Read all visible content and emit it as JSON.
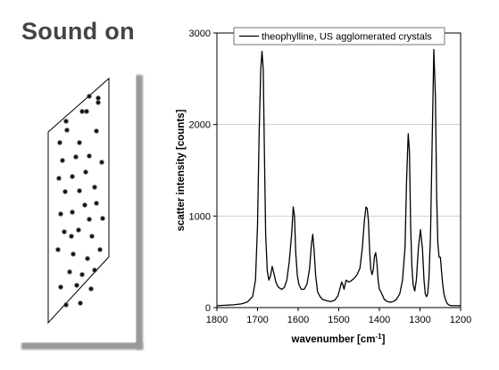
{
  "slide": {
    "heading": "Sound on"
  },
  "chart_data": {
    "type": "line",
    "legend_entry": "theophylline, US agglomerated crystals",
    "legend_position": "top",
    "xlabel": "wavenumber [cm-1]",
    "xlabel_main": "wavenumber [cm",
    "xlabel_sup": "-1",
    "xlabel_close": "]",
    "ylabel": "scatter intensity [counts]",
    "xlim": [
      1800,
      1200
    ],
    "ylim": [
      0,
      3000
    ],
    "x_reversed": true,
    "grid": "horizontal",
    "x_ticks": [
      1800,
      1700,
      1600,
      1500,
      1400,
      1300,
      1200
    ],
    "y_ticks": [
      0,
      1000,
      2000,
      3000
    ],
    "x_tick_labels": [
      "1800",
      "1700",
      "1600",
      "1500",
      "1400",
      "1300",
      "1200"
    ],
    "y_tick_labels": [
      "0",
      "1000",
      "2000",
      "3000"
    ],
    "line_color": "#000000",
    "series": [
      {
        "x": [
          1800,
          1780,
          1760,
          1740,
          1725,
          1712,
          1705,
          1700,
          1696,
          1692,
          1689,
          1686,
          1683,
          1680,
          1676,
          1672,
          1668,
          1664,
          1660,
          1655,
          1650,
          1645,
          1640,
          1634,
          1628,
          1622,
          1616,
          1612,
          1609,
          1606,
          1602,
          1598,
          1592,
          1585,
          1578,
          1572,
          1567,
          1564,
          1561,
          1557,
          1552,
          1546,
          1540,
          1530,
          1520,
          1510,
          1502,
          1497,
          1493,
          1490,
          1487,
          1482,
          1476,
          1470,
          1462,
          1455,
          1448,
          1442,
          1437,
          1433,
          1430,
          1427,
          1424,
          1421,
          1418,
          1415,
          1412,
          1409,
          1406,
          1403,
          1400,
          1397,
          1393,
          1388,
          1382,
          1376,
          1370,
          1364,
          1358,
          1350,
          1343,
          1337,
          1333,
          1329,
          1326,
          1323,
          1320,
          1317,
          1313,
          1309,
          1304,
          1299,
          1294,
          1290,
          1287,
          1284,
          1281,
          1278,
          1274,
          1270,
          1266,
          1262,
          1259,
          1256,
          1253,
          1250,
          1247,
          1244,
          1241,
          1238,
          1235,
          1232,
          1228,
          1222,
          1214,
          1205,
          1200
        ],
        "y": [
          20,
          25,
          30,
          40,
          60,
          120,
          300,
          900,
          1900,
          2600,
          2800,
          2600,
          1700,
          800,
          400,
          300,
          350,
          450,
          380,
          280,
          230,
          210,
          200,
          220,
          300,
          500,
          800,
          1100,
          1000,
          600,
          350,
          250,
          200,
          200,
          260,
          420,
          700,
          800,
          650,
          350,
          170,
          120,
          90,
          75,
          65,
          80,
          130,
          210,
          280,
          250,
          200,
          300,
          280,
          290,
          320,
          360,
          430,
          650,
          950,
          1100,
          1080,
          950,
          620,
          420,
          360,
          420,
          560,
          600,
          480,
          300,
          200,
          180,
          140,
          90,
          70,
          60,
          60,
          70,
          90,
          150,
          300,
          650,
          1400,
          1900,
          1700,
          900,
          450,
          250,
          180,
          300,
          650,
          850,
          650,
          300,
          150,
          120,
          150,
          320,
          800,
          1800,
          2820,
          2300,
          1200,
          700,
          550,
          550,
          400,
          250,
          150,
          100,
          60,
          40,
          25,
          20,
          20,
          20,
          20
        ]
      }
    ]
  },
  "particles": {
    "count_label": ""
  }
}
